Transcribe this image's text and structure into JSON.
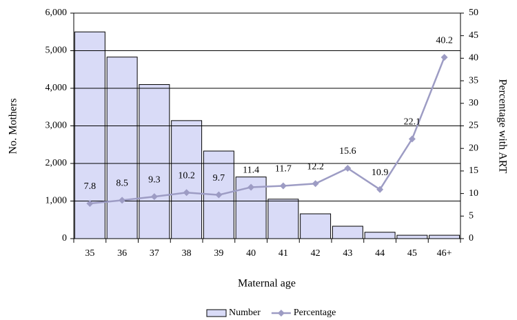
{
  "chart_data": {
    "type": "bar-line",
    "x_label": "Maternal age",
    "y_label": "No. Mothers",
    "y2_label": "Percentage with ART",
    "categories": [
      "35",
      "36",
      "37",
      "38",
      "39",
      "40",
      "41",
      "42",
      "43",
      "44",
      "45",
      "46+"
    ],
    "series": [
      {
        "name": "Number",
        "type": "bar",
        "color": "#d9dbf7",
        "values": [
          5500,
          4830,
          4100,
          3140,
          2330,
          1640,
          1050,
          660,
          330,
          170,
          90,
          90
        ]
      },
      {
        "name": "Percentage",
        "type": "line",
        "axis": "y2",
        "color": "#9d9cc4",
        "values": [
          7.8,
          8.5,
          9.3,
          10.2,
          9.7,
          11.4,
          11.7,
          12.2,
          15.6,
          10.9,
          22.1,
          40.2
        ]
      }
    ],
    "ylim": [
      0,
      6000
    ],
    "yticks": [
      0,
      {
        "value": 1000,
        "label": "1,000"
      },
      {
        "value": 2000,
        "label": "2,000"
      },
      {
        "value": 3000,
        "label": "3,000"
      },
      {
        "value": 4000,
        "label": "4,000"
      },
      {
        "value": 5000,
        "label": "5,000"
      },
      {
        "value": 6000,
        "label": "6,000"
      }
    ],
    "y2lim": [
      0,
      50
    ],
    "y2ticks": [
      0,
      5,
      10,
      15,
      20,
      25,
      30,
      35,
      40,
      45,
      50
    ],
    "grid": true,
    "legend": "bottom"
  }
}
